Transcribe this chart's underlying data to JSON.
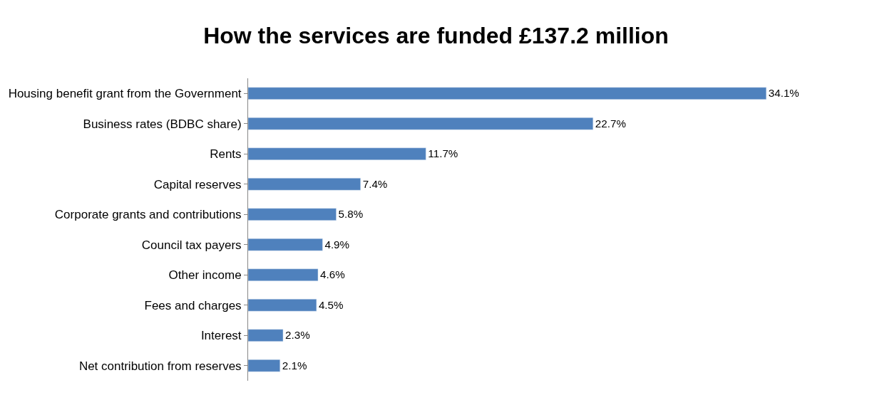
{
  "chart_data": {
    "type": "bar",
    "orientation": "horizontal",
    "title": "How the services are funded £137.2 million",
    "categories": [
      "Housing benefit grant from the Government",
      "Business rates (BDBC share)",
      "Rents",
      "Capital reserves",
      "Corporate grants and contributions",
      "Council tax payers",
      "Other income",
      "Fees and charges",
      "Interest",
      "Net contribution from reserves"
    ],
    "values": [
      34.1,
      22.7,
      11.7,
      7.4,
      5.8,
      4.9,
      4.6,
      4.5,
      2.3,
      2.1
    ],
    "value_labels": [
      "34.1%",
      "22.7%",
      "11.7%",
      "7.4%",
      "5.8%",
      "4.9%",
      "4.6%",
      "4.5%",
      "2.3%",
      "2.1%"
    ],
    "color": "#4f81bd"
  }
}
